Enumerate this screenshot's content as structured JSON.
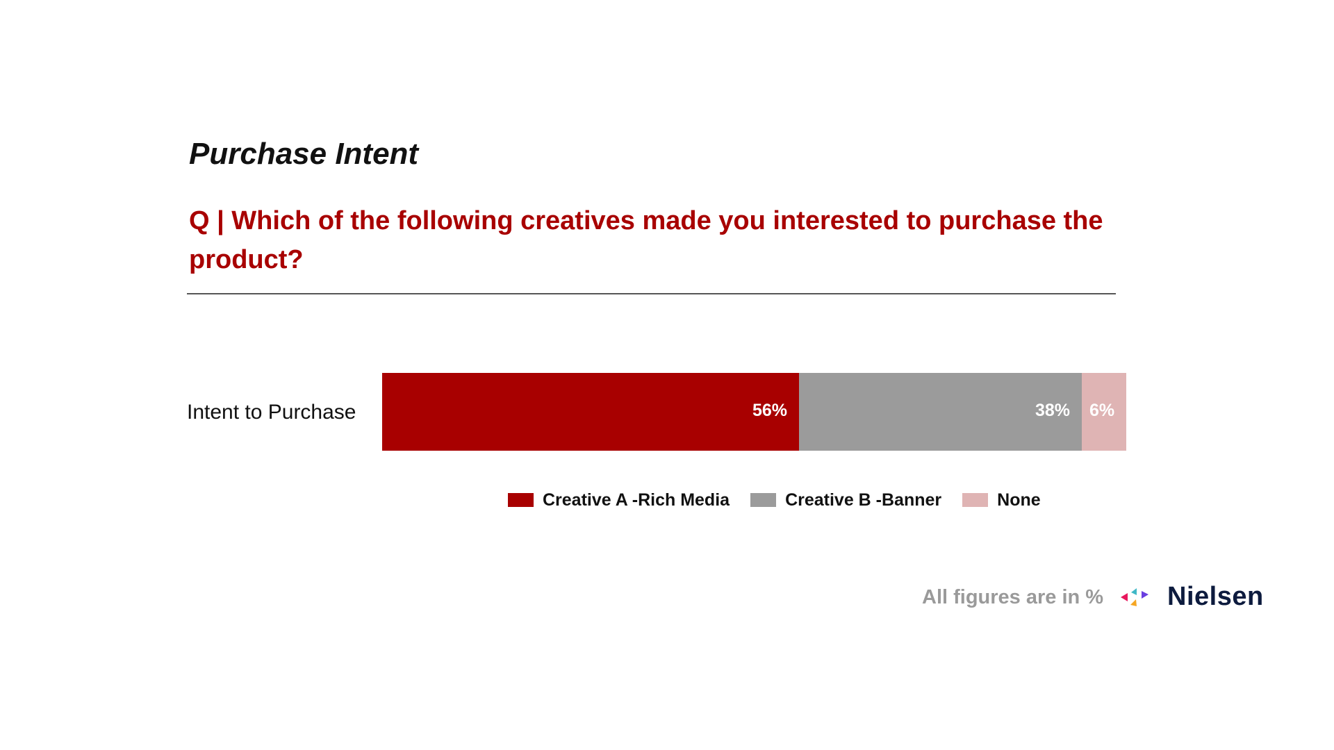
{
  "slide": {
    "title": "Purchase Intent",
    "question": "Q | Which of the following creatives made you interested to purchase the product?",
    "footnote": "All figures are in %",
    "brand": "Nielsen"
  },
  "chart_data": {
    "type": "bar",
    "orientation": "horizontal",
    "stacked": true,
    "categories": [
      "Intent to Purchase"
    ],
    "series": [
      {
        "name": "Creative A -Rich Media",
        "values": [
          56
        ],
        "label": "56%",
        "color": "#a80000"
      },
      {
        "name": "Creative B -Banner",
        "values": [
          38
        ],
        "label": "38%",
        "color": "#9b9b9b"
      },
      {
        "name": "None",
        "values": [
          6
        ],
        "label": "6%",
        "color": "#dfb4b4"
      }
    ],
    "xlim": [
      0,
      100
    ],
    "grid": false,
    "legend_position": "bottom"
  },
  "colors": {
    "accent": "#a80000",
    "title_text": "#111111",
    "footnote_text": "#9a9a9a",
    "brand_text": "#0d1b3e"
  },
  "icons": [
    "nielsen-logo-icon"
  ]
}
